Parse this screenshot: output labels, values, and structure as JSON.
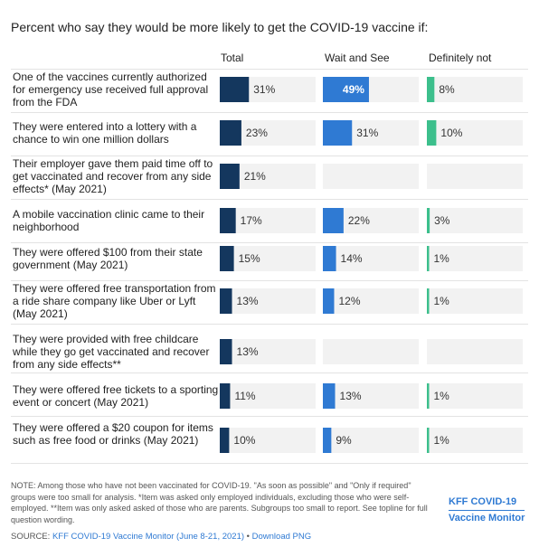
{
  "title": "Percent who say they would be more likely to get the COVID-19 vaccine if:",
  "columns": [
    "Total",
    "Wait and See",
    "Definitely not"
  ],
  "colors": {
    "total": "#14375e",
    "wait_and_see": "#2f7ad3",
    "definitely_not": "#3cbf8c",
    "track": "#f2f2f2"
  },
  "chart_data": {
    "type": "bar",
    "categories": [
      "One of the vaccines currently authorized for emergency use received full approval from the FDA",
      "They were entered into a lottery with a chance to win one million dollars",
      "Their employer gave them paid time off to get vaccinated and recover from any side effects* (May 2021)",
      "A mobile vaccination clinic came to their neighborhood",
      "They were offered $100 from their state government (May 2021)",
      "They were offered free transportation from a ride share company like Uber or Lyft (May 2021)",
      "They were provided with free childcare while they go get vaccinated and recover from any side effects**",
      "They were offered free tickets to a sporting event or concert (May 2021)",
      "They were offered a $20 coupon for items such as free food or drinks (May 2021)"
    ],
    "series": [
      {
        "name": "Total",
        "values": [
          31,
          23,
          21,
          17,
          15,
          13,
          13,
          11,
          10
        ],
        "labels": [
          "31%",
          "23%",
          "21%",
          "17%",
          "15%",
          "13%",
          "13%",
          "11%",
          "10%"
        ]
      },
      {
        "name": "Wait and See",
        "values": [
          49,
          31,
          null,
          22,
          14,
          12,
          null,
          13,
          9
        ],
        "labels": [
          "49%",
          "31%",
          "",
          "22%",
          "14%",
          "12%",
          "",
          "13%",
          "9%"
        ]
      },
      {
        "name": "Definitely not",
        "values": [
          8,
          10,
          null,
          3,
          1,
          1,
          null,
          1,
          1
        ],
        "labels": [
          "8%",
          "10%",
          "",
          "3%",
          "1%",
          "1%",
          "",
          "1%",
          "1%"
        ]
      }
    ],
    "xlim": [
      0,
      100
    ]
  },
  "note": "NOTE: Among those who have not been vaccinated for COVID-19. \"As soon as possible\" and \"Only if required\" groups were too small for analysis. *Item was asked only employed individuals, excluding those who were self-employed. **Item was only asked asked of those who are parents. Subgroups too small to report. See topline for full question wording.",
  "source": {
    "prefix": "SOURCE: ",
    "link": "KFF COVID-19 Vaccine Monitor (June 8-21, 2021)",
    "separator": " • ",
    "download": "Download PNG"
  },
  "logo": {
    "line1": "KFF COVID-19",
    "line2": "Vaccine Monitor"
  }
}
